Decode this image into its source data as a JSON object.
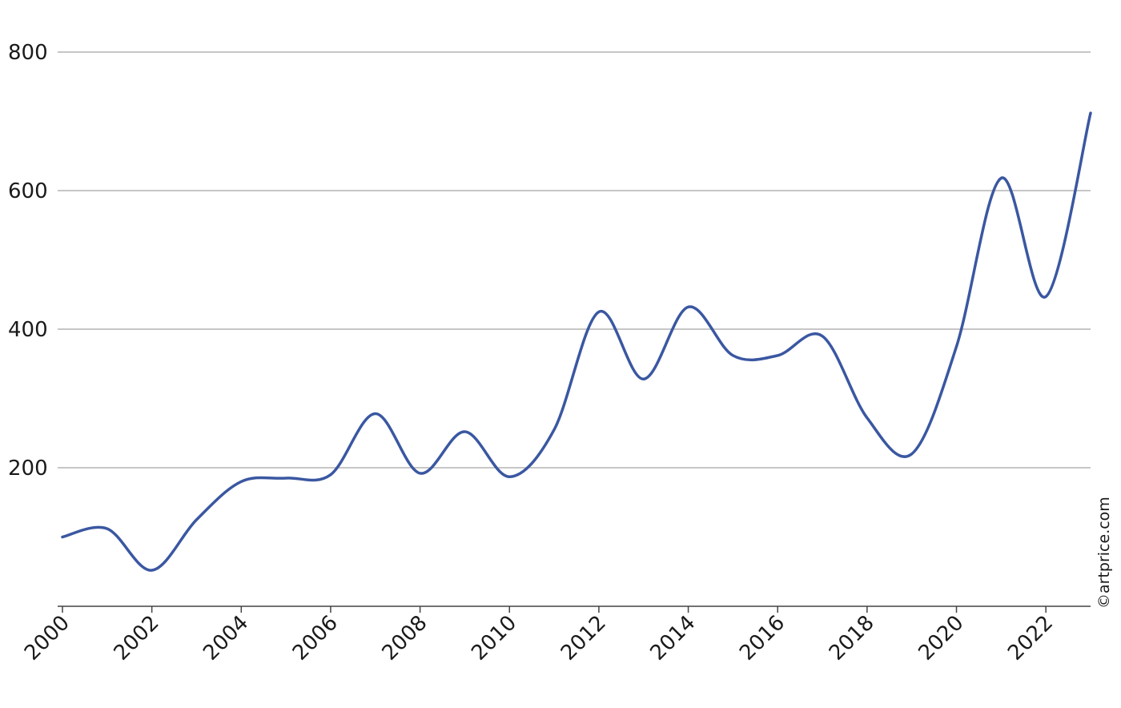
{
  "chart_data": {
    "type": "line",
    "title": "",
    "xlabel": "",
    "ylabel": "",
    "x": [
      2000,
      2001,
      2002,
      2003,
      2004,
      2005,
      2006,
      2007,
      2008,
      2009,
      2010,
      2011,
      2012,
      2013,
      2014,
      2015,
      2016,
      2017,
      2018,
      2019,
      2020,
      2021,
      2022,
      2023
    ],
    "series": [
      {
        "values": [
          100,
          112,
          52,
          125,
          180,
          185,
          190,
          278,
          192,
          252,
          187,
          255,
          425,
          328,
          432,
          362,
          362,
          390,
          272,
          220,
          375,
          618,
          447,
          712
        ]
      }
    ],
    "xlim": [
      2000,
      2023
    ],
    "ylim": [
      0,
      800
    ],
    "y_ticks": [
      200,
      400,
      600,
      800
    ],
    "x_ticks": [
      2000,
      2002,
      2004,
      2006,
      2008,
      2010,
      2012,
      2014,
      2016,
      2018,
      2020,
      2022
    ],
    "grid": "horizontal",
    "legend": "none",
    "colors": {
      "line": "#3a57a1",
      "grid": "#b3b3b3",
      "axis": "#444444",
      "text": "#1a1a1a"
    }
  },
  "credit": "©artprice.com"
}
